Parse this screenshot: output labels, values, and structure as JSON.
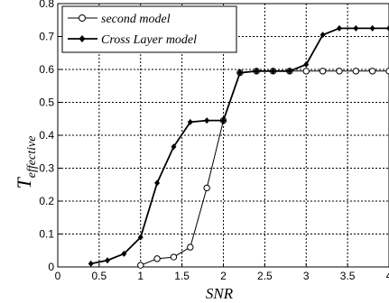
{
  "chart_data": {
    "type": "line",
    "xlabel": "SNR",
    "ylabel_main": "T",
    "ylabel_sub": "effective",
    "xlim": [
      0,
      4
    ],
    "ylim": [
      0,
      0.8
    ],
    "xticks": [
      0,
      0.5,
      1,
      1.5,
      2,
      2.5,
      3,
      3.5,
      4
    ],
    "xtick_labels": [
      "0",
      "0.5",
      "1",
      "1.5",
      "2",
      "2.5",
      "3",
      "3.5",
      "4"
    ],
    "yticks": [
      0,
      0.1,
      0.2,
      0.3,
      0.4,
      0.5,
      0.6,
      0.7,
      0.8
    ],
    "ytick_labels": [
      "0",
      "0.1",
      "0.2",
      "0.3",
      "0.4",
      "0.5",
      "0.6",
      "0.7",
      "0.8"
    ],
    "grid": true,
    "legend_position": "top-left",
    "series": [
      {
        "name": "second model",
        "marker": "open-circle",
        "color": "#000000",
        "x": [
          1.0,
          1.2,
          1.4,
          1.6,
          1.8,
          2.0,
          2.2,
          2.4,
          2.6,
          2.8,
          3.0,
          3.2,
          3.4,
          3.6,
          3.8,
          4.0
        ],
        "y": [
          0.005,
          0.025,
          0.03,
          0.06,
          0.24,
          0.445,
          0.59,
          0.595,
          0.595,
          0.595,
          0.595,
          0.595,
          0.595,
          0.595,
          0.595,
          0.595
        ]
      },
      {
        "name": "Cross Layer model",
        "marker": "filled-diamond",
        "color": "#000000",
        "x": [
          0.4,
          0.6,
          0.8,
          1.0,
          1.2,
          1.4,
          1.6,
          1.8,
          2.0,
          2.2,
          2.4,
          2.6,
          2.8,
          3.0,
          3.2,
          3.4,
          3.6,
          3.8,
          4.0
        ],
        "y": [
          0.01,
          0.02,
          0.04,
          0.09,
          0.255,
          0.365,
          0.44,
          0.445,
          0.445,
          0.59,
          0.595,
          0.595,
          0.595,
          0.615,
          0.705,
          0.725,
          0.725,
          0.725,
          0.725
        ]
      }
    ]
  }
}
